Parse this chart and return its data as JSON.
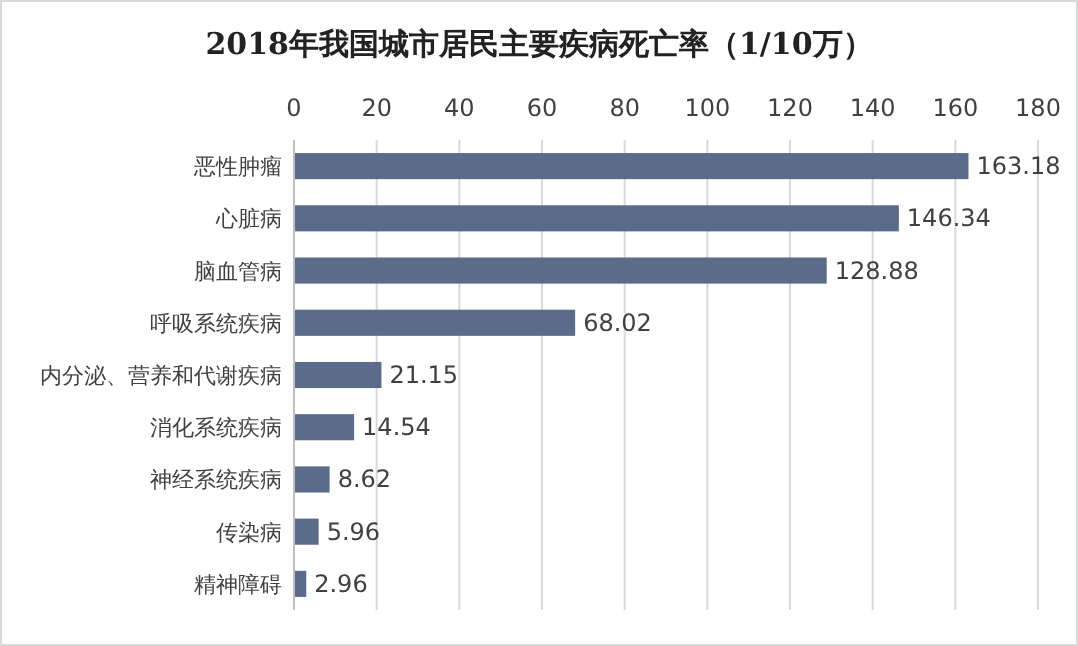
{
  "chart_data": {
    "type": "bar",
    "title": "2018年我国城市居民主要疾病死亡率（1/10万）",
    "orientation": "horizontal",
    "categories": [
      "恶性肿瘤",
      "心脏病",
      "脑血管病",
      "呼吸系统疾病",
      "内分泌、营养和代谢疾病",
      "消化系统疾病",
      "神经系统疾病",
      "传染病",
      "精神障碍"
    ],
    "values": [
      163.18,
      146.34,
      128.88,
      68.02,
      21.15,
      14.54,
      8.62,
      5.96,
      2.96
    ],
    "color": "#5b6b8a",
    "xlim": [
      0,
      180
    ],
    "xticks": [
      0,
      20,
      40,
      60,
      80,
      100,
      120,
      140,
      160,
      180
    ],
    "grid": "x",
    "data_labels": true
  }
}
